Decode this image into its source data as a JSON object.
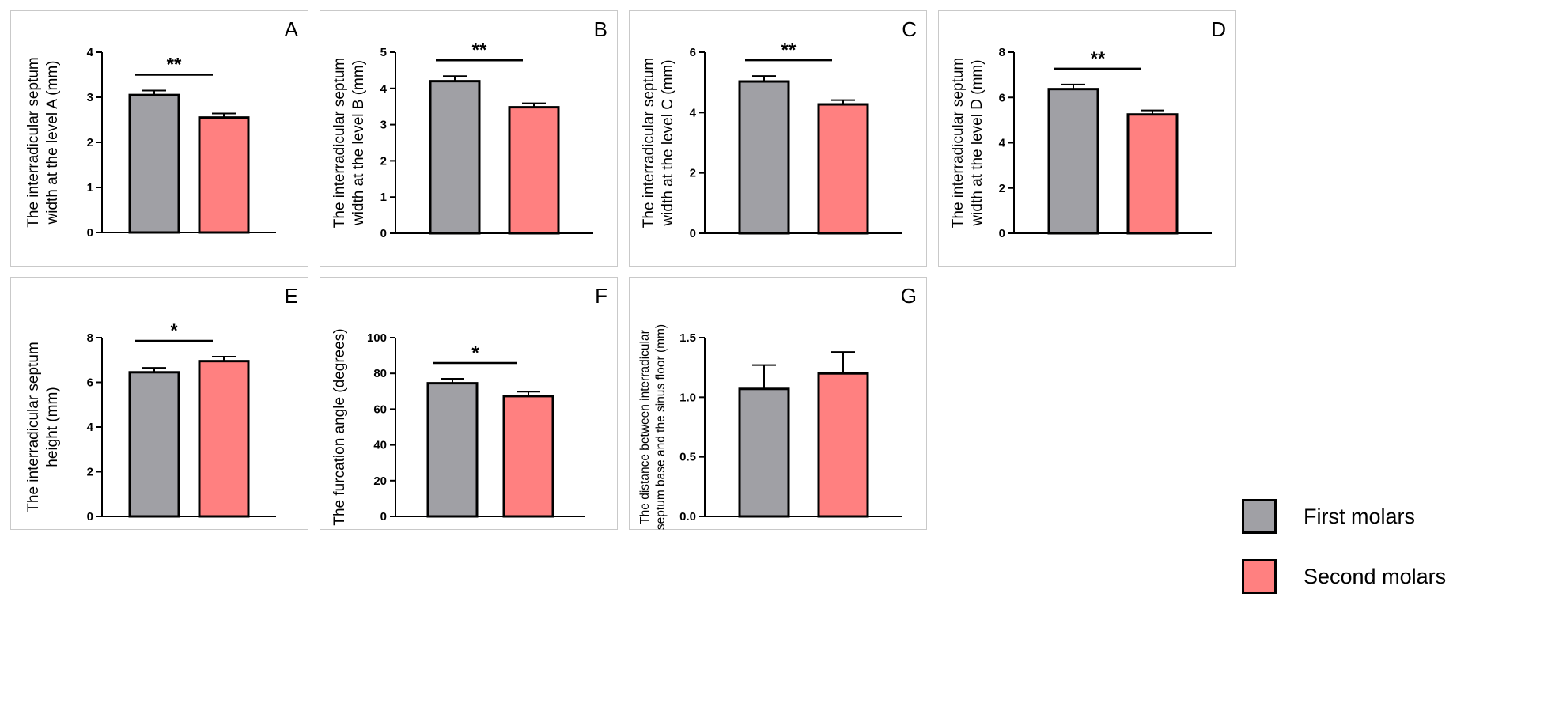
{
  "chart_data": [
    {
      "type": "bar",
      "panel_letter": "A",
      "categories": [
        "First molars",
        "Second molars"
      ],
      "values": [
        3.05,
        2.55
      ],
      "errors": [
        0.1,
        0.09
      ],
      "ylabel_lines": [
        "The interradicular septum",
        "width at the level A (mm)"
      ],
      "ylim": [
        0,
        4
      ],
      "yticks": [
        0,
        1,
        2,
        3,
        4
      ],
      "ytick_labels": [
        "0",
        "1",
        "2",
        "3",
        "4"
      ],
      "significance": "**"
    },
    {
      "type": "bar",
      "panel_letter": "B",
      "categories": [
        "First molars",
        "Second molars"
      ],
      "values": [
        4.2,
        3.48
      ],
      "errors": [
        0.14,
        0.11
      ],
      "ylabel_lines": [
        "The interradicular septum",
        "width at the level B (mm)"
      ],
      "ylim": [
        0,
        5
      ],
      "yticks": [
        0,
        1,
        2,
        3,
        4,
        5
      ],
      "ytick_labels": [
        "0",
        "1",
        "2",
        "3",
        "4",
        "5"
      ],
      "significance": "**"
    },
    {
      "type": "bar",
      "panel_letter": "C",
      "categories": [
        "First molars",
        "Second molars"
      ],
      "values": [
        5.03,
        4.27
      ],
      "errors": [
        0.18,
        0.14
      ],
      "ylabel_lines": [
        "The interradicular septum",
        "width at the level C (mm)"
      ],
      "ylim": [
        0,
        6
      ],
      "yticks": [
        0,
        2,
        4,
        6
      ],
      "ytick_labels": [
        "0",
        "2",
        "4",
        "6"
      ],
      "significance": "**"
    },
    {
      "type": "bar",
      "panel_letter": "D",
      "categories": [
        "First molars",
        "Second molars"
      ],
      "values": [
        6.37,
        5.25
      ],
      "errors": [
        0.2,
        0.18
      ],
      "ylabel_lines": [
        "The interradicular septum",
        "width at the level D (mm)"
      ],
      "ylim": [
        0,
        8
      ],
      "yticks": [
        0,
        2,
        4,
        6,
        8
      ],
      "ytick_labels": [
        "0",
        "2",
        "4",
        "6",
        "8"
      ],
      "significance": "**"
    },
    {
      "type": "bar",
      "panel_letter": "E",
      "categories": [
        "First molars",
        "Second molars"
      ],
      "values": [
        6.45,
        6.95
      ],
      "errors": [
        0.2,
        0.2
      ],
      "ylabel_lines": [
        "The interradicular septum",
        "height (mm)"
      ],
      "ylim": [
        0,
        8
      ],
      "yticks": [
        0,
        2,
        4,
        6,
        8
      ],
      "ytick_labels": [
        "0",
        "2",
        "4",
        "6",
        "8"
      ],
      "significance": "*"
    },
    {
      "type": "bar",
      "panel_letter": "F",
      "categories": [
        "First molars",
        "Second molars"
      ],
      "values": [
        74.5,
        67.3
      ],
      "errors": [
        2.5,
        2.5
      ],
      "ylabel_lines": [
        "The furcation angle (degrees)"
      ],
      "ylim": [
        0,
        100
      ],
      "yticks": [
        0,
        20,
        40,
        60,
        80,
        100
      ],
      "ytick_labels": [
        "0",
        "20",
        "40",
        "60",
        "80",
        "100"
      ],
      "significance": "*"
    },
    {
      "type": "bar",
      "panel_letter": "G",
      "categories": [
        "First molars",
        "Second molars"
      ],
      "values": [
        1.07,
        1.2
      ],
      "errors": [
        0.2,
        0.18
      ],
      "ylabel_lines": [
        "The distance between interradicular",
        "septum base and the sinus floor (mm)"
      ],
      "ylim": [
        0,
        1.5
      ],
      "yticks": [
        0,
        0.5,
        1.0,
        1.5
      ],
      "ytick_labels": [
        "0.0",
        "0.5",
        "1.0",
        "1.5"
      ],
      "significance": ""
    }
  ],
  "legend": {
    "items": [
      {
        "label": "First molars",
        "color": "#a0a0a5"
      },
      {
        "label": "Second molars",
        "color": "#ff8080"
      }
    ]
  }
}
